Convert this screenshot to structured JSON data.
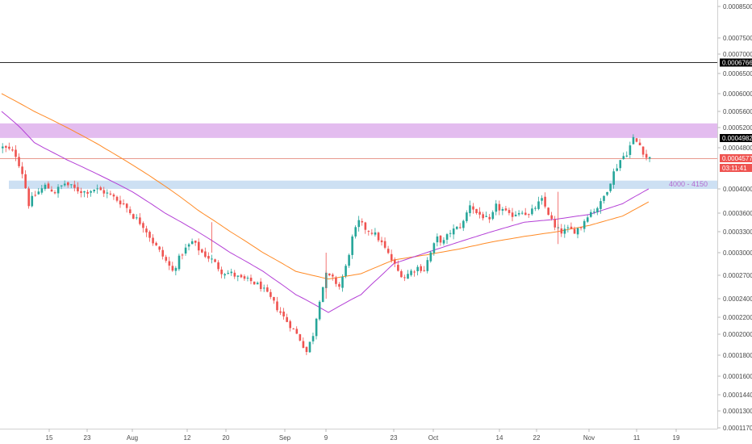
{
  "colors": {
    "up": "#26a69a",
    "down": "#ef5350",
    "ma_fast": "#b43fd6",
    "ma_slow": "#ff8a25",
    "resistance_zone": "#d9a6ea",
    "support_zone": "#bcd6ef",
    "price_line": "#e89a8f",
    "high_line": "#2b2b2b",
    "tag_dark": "#000000",
    "tag_red": "#ef5350"
  },
  "chart_data": {
    "type": "candlestick",
    "y_axis": {
      "ticks": [
        "0.0008500",
        "0.0007500",
        "0.0007000",
        "0.0006500",
        "0.0006000",
        "0.0005600",
        "0.0005200",
        "0.0004800",
        "0.0004000",
        "0.0003600",
        "0.0003300",
        "0.0003000",
        "0.0002700",
        "0.0002400",
        "0.0002200",
        "0.0002000",
        "0.0001800",
        "0.0001600",
        "0.0001440",
        "0.0001300",
        "0.0001170"
      ]
    },
    "x_axis": {
      "ticks": [
        "15",
        "23",
        "Aug",
        "12",
        "20",
        "Sep",
        "9",
        "23",
        "Oct",
        "14",
        "22",
        "Nov",
        "11",
        "19"
      ]
    },
    "price_tags": {
      "high_line": "0.0006766",
      "zone_top": "0.0004982",
      "last": "0.0004577",
      "countdown": "03:11:41"
    },
    "zones": [
      {
        "id": "resistance",
        "low": 0.000499,
        "high": 0.00053
      },
      {
        "id": "support",
        "low": 0.0004,
        "high": 0.000415,
        "label": "4000 - 4150"
      }
    ],
    "price_anchors": [
      [
        0,
        0.00048
      ],
      [
        2,
        0.000475
      ],
      [
        4,
        0.000465
      ],
      [
        6,
        0.00043
      ],
      [
        8,
        0.000375
      ],
      [
        10,
        0.00039
      ],
      [
        13,
        0.000405
      ],
      [
        16,
        0.000395
      ],
      [
        19,
        0.00041
      ],
      [
        22,
        0.0004
      ],
      [
        25,
        0.000395
      ],
      [
        28,
        0.0004
      ],
      [
        31,
        0.000395
      ],
      [
        34,
        0.000385
      ],
      [
        37,
        0.000375
      ],
      [
        40,
        0.000355
      ],
      [
        43,
        0.00034
      ],
      [
        46,
        0.000315
      ],
      [
        49,
        0.000295
      ],
      [
        52,
        0.000275
      ],
      [
        55,
        0.0003
      ],
      [
        58,
        0.000315
      ],
      [
        61,
        0.0003
      ],
      [
        64,
        0.00029
      ],
      [
        67,
        0.000275
      ],
      [
        70,
        0.000272
      ],
      [
        73,
        0.000265
      ],
      [
        76,
        0.000262
      ],
      [
        79,
        0.000255
      ],
      [
        82,
        0.00024
      ],
      [
        85,
        0.000225
      ],
      [
        88,
        0.00021
      ],
      [
        91,
        0.000195
      ],
      [
        93,
        0.000183
      ],
      [
        95,
        0.0002
      ],
      [
        97,
        0.00024
      ],
      [
        99,
        0.00027
      ],
      [
        101,
        0.000265
      ],
      [
        103,
        0.000255
      ],
      [
        105,
        0.00028
      ],
      [
        107,
        0.00032
      ],
      [
        109,
        0.000345
      ],
      [
        111,
        0.000335
      ],
      [
        113,
        0.00033
      ],
      [
        115,
        0.00032
      ],
      [
        117,
        0.000305
      ],
      [
        119,
        0.00029
      ],
      [
        121,
        0.000275
      ],
      [
        123,
        0.000268
      ],
      [
        125,
        0.000275
      ],
      [
        127,
        0.00028
      ],
      [
        129,
        0.000278
      ],
      [
        131,
        0.0003
      ],
      [
        133,
        0.00032
      ],
      [
        135,
        0.000315
      ],
      [
        137,
        0.00033
      ],
      [
        139,
        0.000335
      ],
      [
        141,
        0.000345
      ],
      [
        143,
        0.000375
      ],
      [
        145,
        0.00036
      ],
      [
        147,
        0.000355
      ],
      [
        149,
        0.000345
      ],
      [
        151,
        0.00037
      ],
      [
        153,
        0.000365
      ],
      [
        155,
        0.000355
      ],
      [
        157,
        0.00036
      ],
      [
        159,
        0.000365
      ],
      [
        161,
        0.000355
      ],
      [
        163,
        0.00037
      ],
      [
        165,
        0.00038
      ],
      [
        167,
        0.00036
      ],
      [
        169,
        0.000335
      ],
      [
        171,
        0.00033
      ],
      [
        173,
        0.000333
      ],
      [
        175,
        0.000332
      ],
      [
        177,
        0.000338
      ],
      [
        179,
        0.000358
      ],
      [
        181,
        0.000365
      ],
      [
        183,
        0.000375
      ],
      [
        185,
        0.0004
      ],
      [
        187,
        0.00043
      ],
      [
        189,
        0.000455
      ],
      [
        191,
        0.00047
      ],
      [
        193,
        0.000497
      ],
      [
        195,
        0.000485
      ],
      [
        197,
        0.00046
      ],
      [
        198,
        0.000458
      ]
    ],
    "ma_fast_anchors": [
      [
        0,
        0.00056
      ],
      [
        10,
        0.00049
      ],
      [
        20,
        0.000455
      ],
      [
        30,
        0.000425
      ],
      [
        40,
        0.000395
      ],
      [
        50,
        0.00036
      ],
      [
        60,
        0.00033
      ],
      [
        70,
        0.0003
      ],
      [
        80,
        0.000275
      ],
      [
        90,
        0.000245
      ],
      [
        100,
        0.000225
      ],
      [
        110,
        0.000245
      ],
      [
        120,
        0.000285
      ],
      [
        130,
        0.0003
      ],
      [
        140,
        0.000315
      ],
      [
        150,
        0.00033
      ],
      [
        160,
        0.000345
      ],
      [
        170,
        0.00035
      ],
      [
        180,
        0.000358
      ],
      [
        190,
        0.000375
      ],
      [
        198,
        0.0004
      ]
    ],
    "ma_slow_anchors": [
      [
        0,
        0.0006
      ],
      [
        10,
        0.00056
      ],
      [
        20,
        0.00052
      ],
      [
        30,
        0.000485
      ],
      [
        40,
        0.000445
      ],
      [
        50,
        0.000405
      ],
      [
        60,
        0.000365
      ],
      [
        70,
        0.00033
      ],
      [
        80,
        0.0003
      ],
      [
        90,
        0.000275
      ],
      [
        100,
        0.000265
      ],
      [
        110,
        0.000272
      ],
      [
        120,
        0.00029
      ],
      [
        130,
        0.000297
      ],
      [
        140,
        0.000305
      ],
      [
        150,
        0.000315
      ],
      [
        160,
        0.000323
      ],
      [
        170,
        0.00033
      ],
      [
        180,
        0.00034
      ],
      [
        190,
        0.000355
      ],
      [
        198,
        0.000378
      ]
    ]
  }
}
